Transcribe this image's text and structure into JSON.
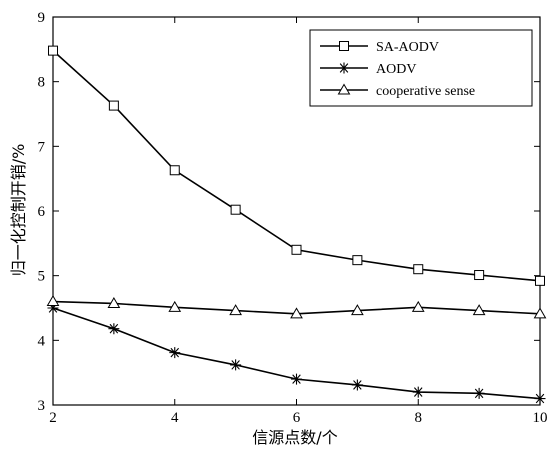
{
  "chart_data": {
    "type": "line",
    "xlabel": "信源点数/个",
    "ylabel": "归一化控制开销/%",
    "xlim": [
      2,
      10
    ],
    "ylim": [
      3,
      9
    ],
    "xticks": [
      2,
      4,
      6,
      8,
      10
    ],
    "yticks": [
      3,
      4,
      5,
      6,
      7,
      8,
      9
    ],
    "x_tick_labels": [
      "2",
      "4",
      "6",
      "8",
      "10"
    ],
    "y_tick_labels": [
      "3",
      "4",
      "5",
      "6",
      "7",
      "8",
      "9"
    ],
    "legend_position": "top-right",
    "x": [
      2,
      3,
      4,
      5,
      6,
      7,
      8,
      9,
      10
    ],
    "series": [
      {
        "name": "SA-AODV",
        "marker": "square",
        "values": [
          8.48,
          7.63,
          6.63,
          6.02,
          5.4,
          5.24,
          5.1,
          5.01,
          4.92
        ]
      },
      {
        "name": "AODV",
        "marker": "asterisk",
        "values": [
          4.5,
          4.18,
          3.81,
          3.62,
          3.4,
          3.31,
          3.2,
          3.18,
          3.1
        ]
      },
      {
        "name": "cooperative sense",
        "marker": "triangle",
        "values": [
          4.6,
          4.57,
          4.51,
          4.46,
          4.41,
          4.46,
          4.51,
          4.46,
          4.41
        ]
      }
    ]
  }
}
